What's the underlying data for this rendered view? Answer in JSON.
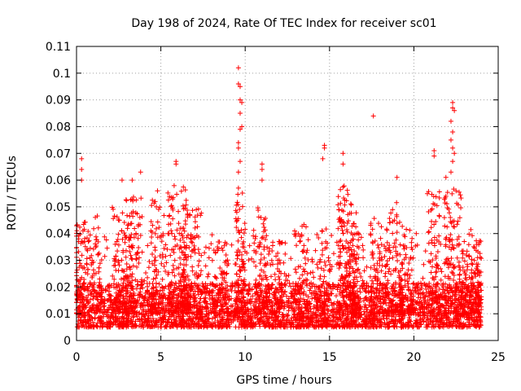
{
  "chart_data": {
    "type": "scatter",
    "title": "Day 198 of 2024, Rate Of TEC Index for receiver sc01",
    "xlabel": "GPS time / hours",
    "ylabel": "ROTI / TECUs",
    "xlim": [
      0,
      25
    ],
    "ylim": [
      0,
      0.11
    ],
    "xticks": [
      0,
      5,
      10,
      15,
      20,
      25
    ],
    "xtick_labels": [
      "0",
      "5",
      "10",
      "15",
      "20",
      "25"
    ],
    "yticks": [
      0,
      0.01,
      0.02,
      0.03,
      0.04,
      0.05,
      0.06,
      0.07,
      0.08,
      0.09,
      0.1,
      0.11
    ],
    "ytick_labels": [
      "0",
      "0.01",
      "0.02",
      "0.03",
      "0.04",
      "0.05",
      "0.06",
      "0.07",
      "0.08",
      "0.09",
      "0.1",
      "0.11"
    ],
    "grid": true,
    "marker": "+",
    "marker_color": "#ff0000",
    "x_data_range_hours": [
      0,
      24
    ],
    "baseline_band": [
      0.005,
      0.02
    ],
    "notable_points": [
      {
        "x": 0.3,
        "y": 0.068
      },
      {
        "x": 0.3,
        "y": 0.064
      },
      {
        "x": 0.3,
        "y": 0.06
      },
      {
        "x": 2.7,
        "y": 0.06
      },
      {
        "x": 3.3,
        "y": 0.06
      },
      {
        "x": 3.8,
        "y": 0.063
      },
      {
        "x": 4.8,
        "y": 0.056
      },
      {
        "x": 5.9,
        "y": 0.067
      },
      {
        "x": 5.9,
        "y": 0.066
      },
      {
        "x": 9.6,
        "y": 0.102
      },
      {
        "x": 9.6,
        "y": 0.096
      },
      {
        "x": 9.7,
        "y": 0.095
      },
      {
        "x": 9.7,
        "y": 0.09
      },
      {
        "x": 9.8,
        "y": 0.089
      },
      {
        "x": 9.7,
        "y": 0.085
      },
      {
        "x": 9.8,
        "y": 0.08
      },
      {
        "x": 9.7,
        "y": 0.079
      },
      {
        "x": 9.6,
        "y": 0.074
      },
      {
        "x": 9.6,
        "y": 0.072
      },
      {
        "x": 9.7,
        "y": 0.067
      },
      {
        "x": 9.6,
        "y": 0.063
      },
      {
        "x": 9.6,
        "y": 0.057
      },
      {
        "x": 11.0,
        "y": 0.066
      },
      {
        "x": 11.0,
        "y": 0.064
      },
      {
        "x": 11.0,
        "y": 0.06
      },
      {
        "x": 14.7,
        "y": 0.073
      },
      {
        "x": 14.7,
        "y": 0.072
      },
      {
        "x": 14.6,
        "y": 0.068
      },
      {
        "x": 15.8,
        "y": 0.07
      },
      {
        "x": 15.8,
        "y": 0.066
      },
      {
        "x": 17.6,
        "y": 0.084
      },
      {
        "x": 19.0,
        "y": 0.061
      },
      {
        "x": 21.2,
        "y": 0.071
      },
      {
        "x": 21.2,
        "y": 0.069
      },
      {
        "x": 22.3,
        "y": 0.089
      },
      {
        "x": 22.3,
        "y": 0.087
      },
      {
        "x": 22.4,
        "y": 0.086
      },
      {
        "x": 22.2,
        "y": 0.082
      },
      {
        "x": 22.3,
        "y": 0.078
      },
      {
        "x": 22.2,
        "y": 0.075
      },
      {
        "x": 22.3,
        "y": 0.072
      },
      {
        "x": 22.4,
        "y": 0.07
      },
      {
        "x": 22.3,
        "y": 0.067
      },
      {
        "x": 22.2,
        "y": 0.063
      },
      {
        "x": 21.9,
        "y": 0.061
      },
      {
        "x": 22.5,
        "y": 0.056
      }
    ],
    "clusters": [
      {
        "x_center": 0.3,
        "spread": 0.4,
        "y_max": 0.045,
        "count": 90
      },
      {
        "x_center": 1.1,
        "spread": 0.3,
        "y_max": 0.047,
        "count": 60
      },
      {
        "x_center": 2.7,
        "spread": 0.6,
        "y_max": 0.05,
        "count": 110
      },
      {
        "x_center": 3.4,
        "spread": 0.5,
        "y_max": 0.055,
        "count": 100
      },
      {
        "x_center": 4.8,
        "spread": 0.4,
        "y_max": 0.054,
        "count": 90
      },
      {
        "x_center": 6.0,
        "spread": 0.6,
        "y_max": 0.058,
        "count": 140
      },
      {
        "x_center": 6.8,
        "spread": 0.6,
        "y_max": 0.05,
        "count": 110
      },
      {
        "x_center": 8.5,
        "spread": 0.5,
        "y_max": 0.038,
        "count": 60
      },
      {
        "x_center": 9.7,
        "spread": 0.3,
        "y_max": 0.056,
        "count": 80
      },
      {
        "x_center": 10.9,
        "spread": 0.4,
        "y_max": 0.05,
        "count": 70
      },
      {
        "x_center": 11.8,
        "spread": 0.4,
        "y_max": 0.038,
        "count": 50
      },
      {
        "x_center": 13.3,
        "spread": 0.4,
        "y_max": 0.044,
        "count": 60
      },
      {
        "x_center": 14.6,
        "spread": 0.4,
        "y_max": 0.043,
        "count": 60
      },
      {
        "x_center": 15.9,
        "spread": 0.4,
        "y_max": 0.06,
        "count": 110
      },
      {
        "x_center": 16.4,
        "spread": 0.4,
        "y_max": 0.048,
        "count": 80
      },
      {
        "x_center": 17.9,
        "spread": 0.5,
        "y_max": 0.046,
        "count": 80
      },
      {
        "x_center": 18.9,
        "spread": 0.5,
        "y_max": 0.052,
        "count": 90
      },
      {
        "x_center": 19.6,
        "spread": 0.4,
        "y_max": 0.042,
        "count": 60
      },
      {
        "x_center": 21.2,
        "spread": 0.4,
        "y_max": 0.058,
        "count": 80
      },
      {
        "x_center": 22.3,
        "spread": 0.5,
        "y_max": 0.058,
        "count": 120
      },
      {
        "x_center": 23.2,
        "spread": 0.4,
        "y_max": 0.042,
        "count": 70
      },
      {
        "x_center": 23.8,
        "spread": 0.2,
        "y_max": 0.038,
        "count": 50
      }
    ]
  }
}
